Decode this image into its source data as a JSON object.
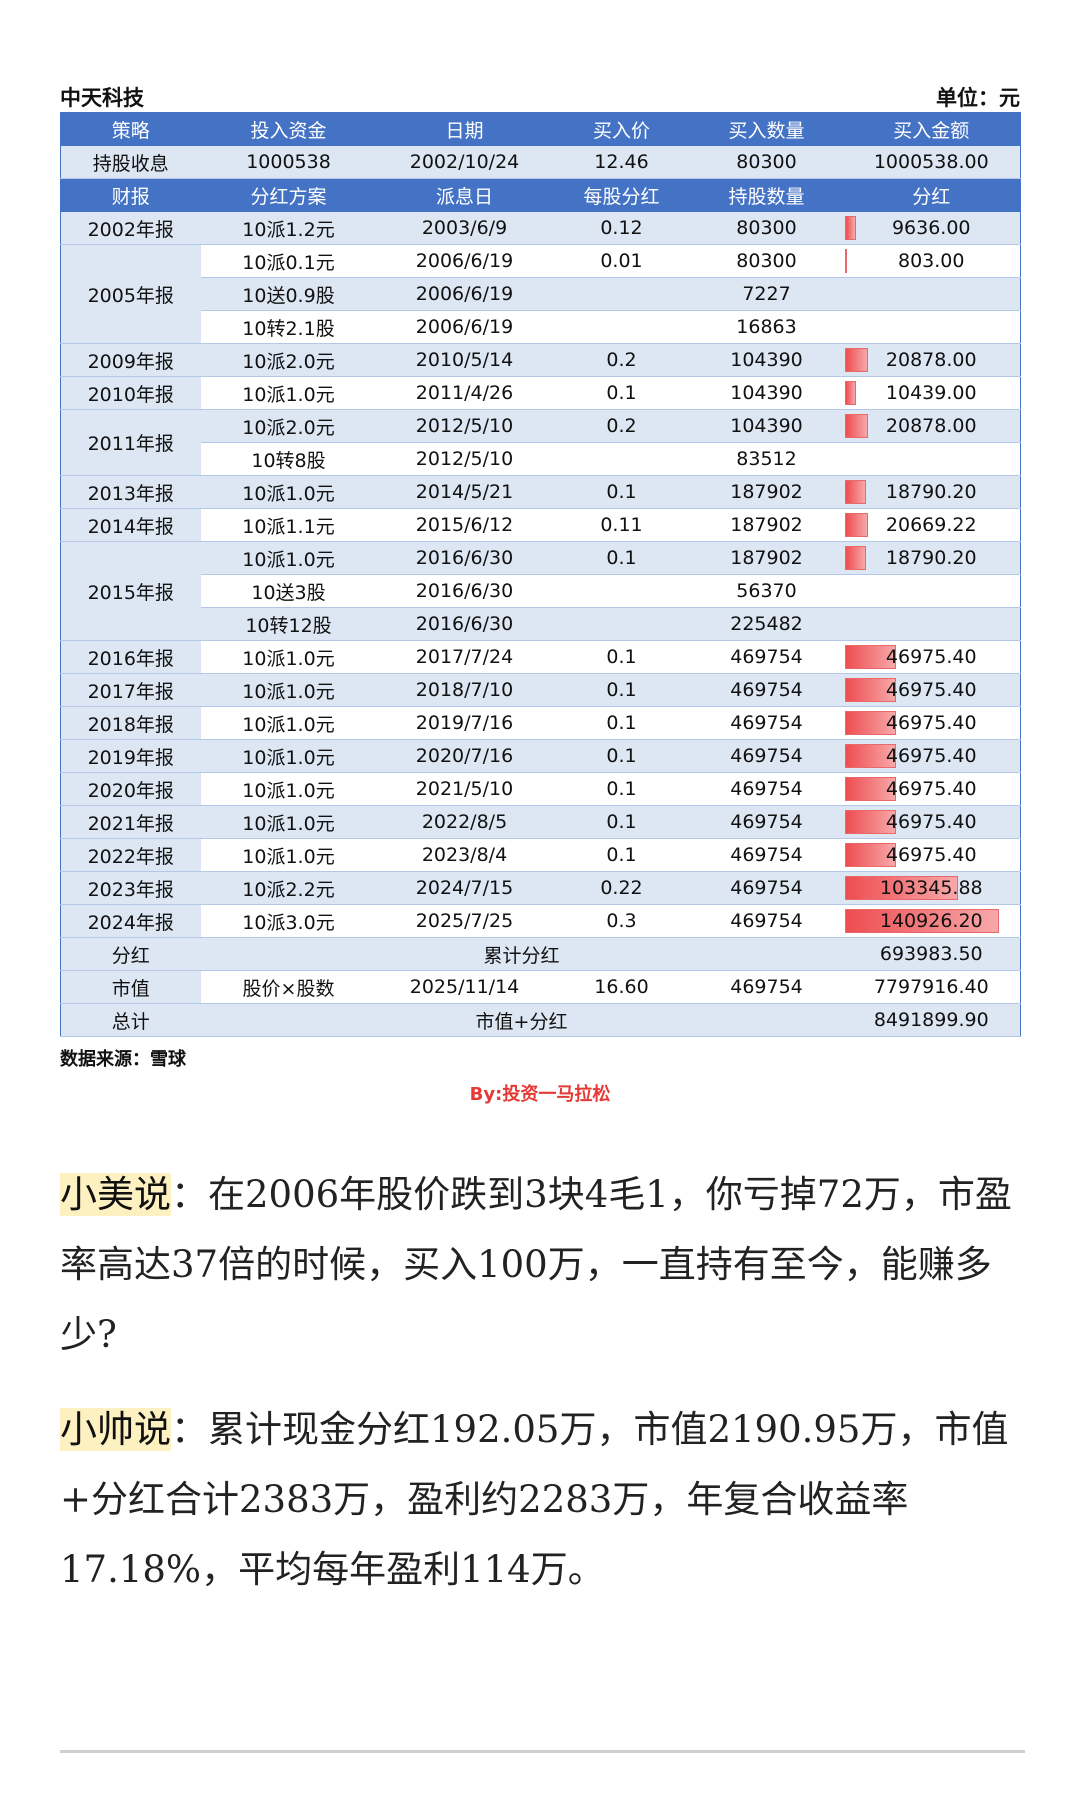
{
  "header": {
    "company": "中天科技",
    "unit": "单位：元"
  },
  "table": {
    "strategy_headers": [
      "策略",
      "投入资金",
      "日期",
      "买入价",
      "买入数量",
      "买入金额"
    ],
    "strategy_row": [
      "持股收息",
      "1000538",
      "2002/10/24",
      "12.46",
      "80300",
      "1000538.00"
    ],
    "detail_headers": [
      "财报",
      "分红方案",
      "派息日",
      "每股分红",
      "持股数量",
      "分红"
    ],
    "rows": [
      {
        "report": "2002年报",
        "plan": "10派1.2元",
        "date": "2003/6/9",
        "dps": "0.12",
        "shares": "80300",
        "dividend": "9636.00",
        "amount": 9636.0
      },
      {
        "report": "2005年报",
        "plan": "10派0.1元",
        "date": "2006/6/19",
        "dps": "0.01",
        "shares": "80300",
        "dividend": "803.00",
        "amount": 803.0
      },
      {
        "report": "",
        "plan": "10送0.9股",
        "date": "2006/6/19",
        "dps": "",
        "shares": "7227",
        "dividend": "",
        "amount": 0
      },
      {
        "report": "",
        "plan": "10转2.1股",
        "date": "2006/6/19",
        "dps": "",
        "shares": "16863",
        "dividend": "",
        "amount": 0
      },
      {
        "report": "2009年报",
        "plan": "10派2.0元",
        "date": "2010/5/14",
        "dps": "0.2",
        "shares": "104390",
        "dividend": "20878.00",
        "amount": 20878.0
      },
      {
        "report": "2010年报",
        "plan": "10派1.0元",
        "date": "2011/4/26",
        "dps": "0.1",
        "shares": "104390",
        "dividend": "10439.00",
        "amount": 10439.0
      },
      {
        "report": "2011年报",
        "plan": "10派2.0元",
        "date": "2012/5/10",
        "dps": "0.2",
        "shares": "104390",
        "dividend": "20878.00",
        "amount": 20878.0
      },
      {
        "report": "",
        "plan": "10转8股",
        "date": "2012/5/10",
        "dps": "",
        "shares": "83512",
        "dividend": "",
        "amount": 0
      },
      {
        "report": "2013年报",
        "plan": "10派1.0元",
        "date": "2014/5/21",
        "dps": "0.1",
        "shares": "187902",
        "dividend": "18790.20",
        "amount": 18790.2
      },
      {
        "report": "2014年报",
        "plan": "10派1.1元",
        "date": "2015/6/12",
        "dps": "0.11",
        "shares": "187902",
        "dividend": "20669.22",
        "amount": 20669.22
      },
      {
        "report": "2015年报",
        "plan": "10派1.0元",
        "date": "2016/6/30",
        "dps": "0.1",
        "shares": "187902",
        "dividend": "18790.20",
        "amount": 18790.2
      },
      {
        "report": "",
        "plan": "10送3股",
        "date": "2016/6/30",
        "dps": "",
        "shares": "56370",
        "dividend": "",
        "amount": 0
      },
      {
        "report": "",
        "plan": "10转12股",
        "date": "2016/6/30",
        "dps": "",
        "shares": "225482",
        "dividend": "",
        "amount": 0
      },
      {
        "report": "2016年报",
        "plan": "10派1.0元",
        "date": "2017/7/24",
        "dps": "0.1",
        "shares": "469754",
        "dividend": "46975.40",
        "amount": 46975.4
      },
      {
        "report": "2017年报",
        "plan": "10派1.0元",
        "date": "2018/7/10",
        "dps": "0.1",
        "shares": "469754",
        "dividend": "46975.40",
        "amount": 46975.4
      },
      {
        "report": "2018年报",
        "plan": "10派1.0元",
        "date": "2019/7/16",
        "dps": "0.1",
        "shares": "469754",
        "dividend": "46975.40",
        "amount": 46975.4
      },
      {
        "report": "2019年报",
        "plan": "10派1.0元",
        "date": "2020/7/16",
        "dps": "0.1",
        "shares": "469754",
        "dividend": "46975.40",
        "amount": 46975.4
      },
      {
        "report": "2020年报",
        "plan": "10派1.0元",
        "date": "2021/5/10",
        "dps": "0.1",
        "shares": "469754",
        "dividend": "46975.40",
        "amount": 46975.4
      },
      {
        "report": "2021年报",
        "plan": "10派1.0元",
        "date": "2022/8/5",
        "dps": "0.1",
        "shares": "469754",
        "dividend": "46975.40",
        "amount": 46975.4
      },
      {
        "report": "2022年报",
        "plan": "10派1.0元",
        "date": "2023/8/4",
        "dps": "0.1",
        "shares": "469754",
        "dividend": "46975.40",
        "amount": 46975.4
      },
      {
        "report": "2023年报",
        "plan": "10派2.2元",
        "date": "2024/7/15",
        "dps": "0.22",
        "shares": "469754",
        "dividend": "103345.88",
        "amount": 103345.88
      },
      {
        "report": "2024年报",
        "plan": "10派3.0元",
        "date": "2025/7/25",
        "dps": "0.3",
        "shares": "469754",
        "dividend": "140926.20",
        "amount": 140926.2
      }
    ],
    "summary": {
      "dividend_label": "分红",
      "dividend_desc": "累计分红",
      "dividend_total": "693983.50",
      "mv_label": "市值",
      "mv_formula": "股价×股数",
      "mv_date": "2025/11/14",
      "mv_price": "16.60",
      "mv_shares": "469754",
      "mv_value": "7797916.40",
      "total_label": "总计",
      "total_desc": "市值+分红",
      "total_value": "8491899.90"
    }
  },
  "source": "数据来源：雪球",
  "byline": "By:投资一马拉松",
  "dialog": {
    "q_speaker": "小美说",
    "q_text": "：在2006年股价跌到3块4毛1，你亏掉72万，市盈率高达37倍的时候，买入100万，一直持有至今，能赚多少?",
    "a_speaker": "小帅说",
    "a_text": "：累计现金分红192.05万，市值2190.95万，市值+分红合计2383万，盈利约2283万，年复合收益率17.18%，平均每年盈利114万。"
  },
  "colors": {
    "header_blue": "#4472c4",
    "band_blue": "#dde6f3",
    "bar_red": "#ee4d50",
    "byline_red": "#e53935",
    "highlight": "#fdf1c2"
  }
}
